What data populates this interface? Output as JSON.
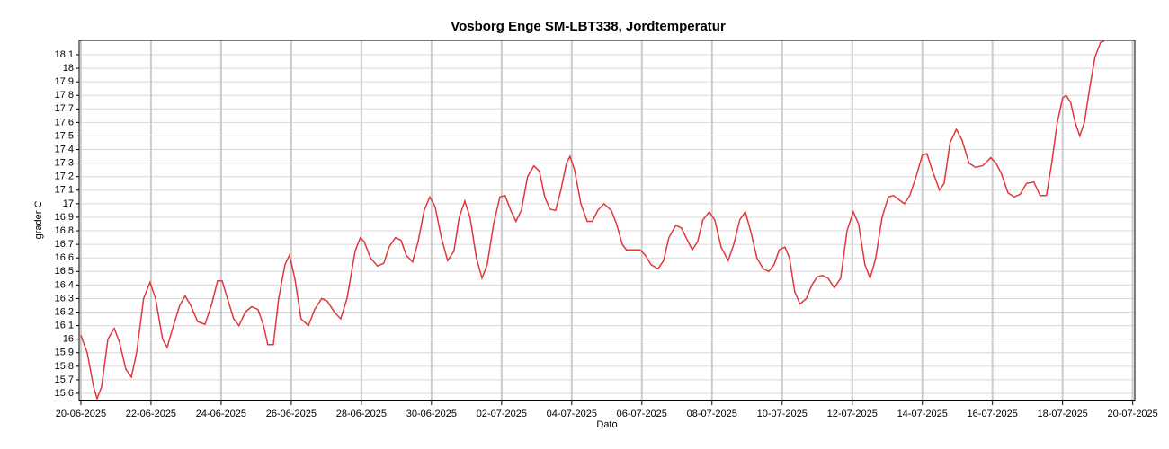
{
  "chart_data": {
    "type": "line",
    "title": "Vosborg Enge SM-LBT338, Jordtemperatur",
    "xlabel": "Dato",
    "ylabel": "grader C",
    "xlim": [
      -0.05,
      30.06
    ],
    "ylim": [
      15.547,
      18.206
    ],
    "xticks": [
      {
        "value": 0,
        "label": "20-06-2025"
      },
      {
        "value": 2,
        "label": "22-06-2025"
      },
      {
        "value": 4,
        "label": "24-06-2025"
      },
      {
        "value": 6,
        "label": "26-06-2025"
      },
      {
        "value": 8,
        "label": "28-06-2025"
      },
      {
        "value": 10,
        "label": "30-06-2025"
      },
      {
        "value": 12,
        "label": "02-07-2025"
      },
      {
        "value": 14,
        "label": "04-07-2025"
      },
      {
        "value": 16,
        "label": "06-07-2025"
      },
      {
        "value": 18,
        "label": "08-07-2025"
      },
      {
        "value": 20,
        "label": "10-07-2025"
      },
      {
        "value": 22,
        "label": "12-07-2025"
      },
      {
        "value": 24,
        "label": "14-07-2025"
      },
      {
        "value": 26,
        "label": "16-07-2025"
      },
      {
        "value": 28,
        "label": "18-07-2025"
      },
      {
        "value": 30,
        "label": "20-07-2025"
      }
    ],
    "yticks": [
      {
        "value": 15.6,
        "label": "15,6"
      },
      {
        "value": 15.7,
        "label": "15,7"
      },
      {
        "value": 15.8,
        "label": "15,8"
      },
      {
        "value": 15.9,
        "label": "15,9"
      },
      16,
      {
        "value": 16.1,
        "label": "16,1"
      },
      {
        "value": 16.2,
        "label": "16,2"
      },
      {
        "value": 16.3,
        "label": "16,3"
      },
      {
        "value": 16.4,
        "label": "16,4"
      },
      {
        "value": 16.5,
        "label": "16,5"
      },
      {
        "value": 16.6,
        "label": "16,6"
      },
      {
        "value": 16.7,
        "label": "16,7"
      },
      {
        "value": 16.8,
        "label": "16,8"
      },
      {
        "value": 16.9,
        "label": "16,9"
      },
      17,
      {
        "value": 17.1,
        "label": "17,1"
      },
      {
        "value": 17.2,
        "label": "17,2"
      },
      {
        "value": 17.3,
        "label": "17,3"
      },
      {
        "value": 17.4,
        "label": "17,4"
      },
      {
        "value": 17.5,
        "label": "17,5"
      },
      {
        "value": 17.6,
        "label": "17,6"
      },
      {
        "value": 17.7,
        "label": "17,7"
      },
      {
        "value": 17.8,
        "label": "17,8"
      },
      {
        "value": 17.9,
        "label": "17,9"
      },
      18,
      {
        "value": 18.1,
        "label": "18,1"
      }
    ],
    "grid": true,
    "x": [
      0,
      0.18,
      0.36,
      0.46,
      0.59,
      0.77,
      0.95,
      1.1,
      1.28,
      1.44,
      1.59,
      1.79,
      1.97,
      2.13,
      2.33,
      2.46,
      2.64,
      2.82,
      2.97,
      3.13,
      3.33,
      3.54,
      3.72,
      3.9,
      4.03,
      4.18,
      4.36,
      4.51,
      4.69,
      4.87,
      5.05,
      5.21,
      5.33,
      5.49,
      5.64,
      5.82,
      5.95,
      6.1,
      6.28,
      6.49,
      6.67,
      6.87,
      7.03,
      7.23,
      7.41,
      7.59,
      7.82,
      7.97,
      8.08,
      8.26,
      8.46,
      8.64,
      8.79,
      8.97,
      9.13,
      9.28,
      9.46,
      9.62,
      9.79,
      9.95,
      10.1,
      10.28,
      10.46,
      10.64,
      10.79,
      10.95,
      11.1,
      11.28,
      11.44,
      11.59,
      11.77,
      11.95,
      12.1,
      12.26,
      12.41,
      12.56,
      12.74,
      12.92,
      13.08,
      13.23,
      13.38,
      13.54,
      13.69,
      13.85,
      13.95,
      14.08,
      14.26,
      14.44,
      14.59,
      14.74,
      14.92,
      15.13,
      15.28,
      15.44,
      15.56,
      15.95,
      16.1,
      16.26,
      16.46,
      16.62,
      16.77,
      16.97,
      17.13,
      17.28,
      17.44,
      17.59,
      17.74,
      17.92,
      18.08,
      18.26,
      18.46,
      18.62,
      18.79,
      18.95,
      19.1,
      19.28,
      19.46,
      19.62,
      19.77,
      19.92,
      20.08,
      20.21,
      20.36,
      20.51,
      20.69,
      20.85,
      21.0,
      21.15,
      21.31,
      21.49,
      21.67,
      21.85,
      22.03,
      22.18,
      22.36,
      22.51,
      22.67,
      22.85,
      23.03,
      23.18,
      23.33,
      23.49,
      23.64,
      23.82,
      24.0,
      24.13,
      24.28,
      24.49,
      24.62,
      24.79,
      24.97,
      25.13,
      25.33,
      25.51,
      25.72,
      25.95,
      26.1,
      26.26,
      26.44,
      26.62,
      26.79,
      26.97,
      27.18,
      27.36,
      27.54,
      27.69,
      27.85,
      28.0,
      28.1,
      28.23,
      28.36,
      28.49,
      28.62,
      28.77,
      28.92,
      29.08,
      29.18
    ],
    "series": [
      {
        "name": "Jordtemperatur",
        "color": "#e0383c",
        "values": [
          16.03,
          15.9,
          15.65,
          15.56,
          15.65,
          16.0,
          16.08,
          15.98,
          15.78,
          15.72,
          15.9,
          16.3,
          16.42,
          16.3,
          16.0,
          15.94,
          16.1,
          16.25,
          16.32,
          16.25,
          16.13,
          16.11,
          16.25,
          16.43,
          16.43,
          16.3,
          16.15,
          16.1,
          16.2,
          16.24,
          16.22,
          16.1,
          15.96,
          15.96,
          16.3,
          16.55,
          16.62,
          16.45,
          16.15,
          16.1,
          16.22,
          16.3,
          16.28,
          16.2,
          16.15,
          16.3,
          16.65,
          16.75,
          16.72,
          16.6,
          16.54,
          16.56,
          16.68,
          16.75,
          16.73,
          16.62,
          16.57,
          16.72,
          16.95,
          17.05,
          16.98,
          16.75,
          16.58,
          16.65,
          16.9,
          17.02,
          16.9,
          16.6,
          16.45,
          16.55,
          16.85,
          17.05,
          17.06,
          16.95,
          16.87,
          16.95,
          17.2,
          17.28,
          17.24,
          17.05,
          16.96,
          16.95,
          17.1,
          17.3,
          17.35,
          17.25,
          17.0,
          16.87,
          16.87,
          16.95,
          17.0,
          16.95,
          16.85,
          16.7,
          16.66,
          16.66,
          16.62,
          16.55,
          16.52,
          16.58,
          16.75,
          16.84,
          16.82,
          16.74,
          16.66,
          16.72,
          16.88,
          16.94,
          16.88,
          16.68,
          16.58,
          16.7,
          16.88,
          16.94,
          16.8,
          16.6,
          16.52,
          16.5,
          16.55,
          16.66,
          16.68,
          16.6,
          16.35,
          16.26,
          16.3,
          16.4,
          16.46,
          16.47,
          16.45,
          16.38,
          16.45,
          16.8,
          16.94,
          16.85,
          16.55,
          16.45,
          16.6,
          16.9,
          17.05,
          17.06,
          17.03,
          17.0,
          17.06,
          17.2,
          17.36,
          17.37,
          17.25,
          17.1,
          17.15,
          17.45,
          17.55,
          17.47,
          17.3,
          17.27,
          17.28,
          17.34,
          17.3,
          17.22,
          17.08,
          17.05,
          17.07,
          17.15,
          17.16,
          17.06,
          17.06,
          17.3,
          17.6,
          17.78,
          17.8,
          17.75,
          17.6,
          17.5,
          17.6,
          17.85,
          18.08,
          18.19,
          18.2
        ]
      }
    ]
  }
}
